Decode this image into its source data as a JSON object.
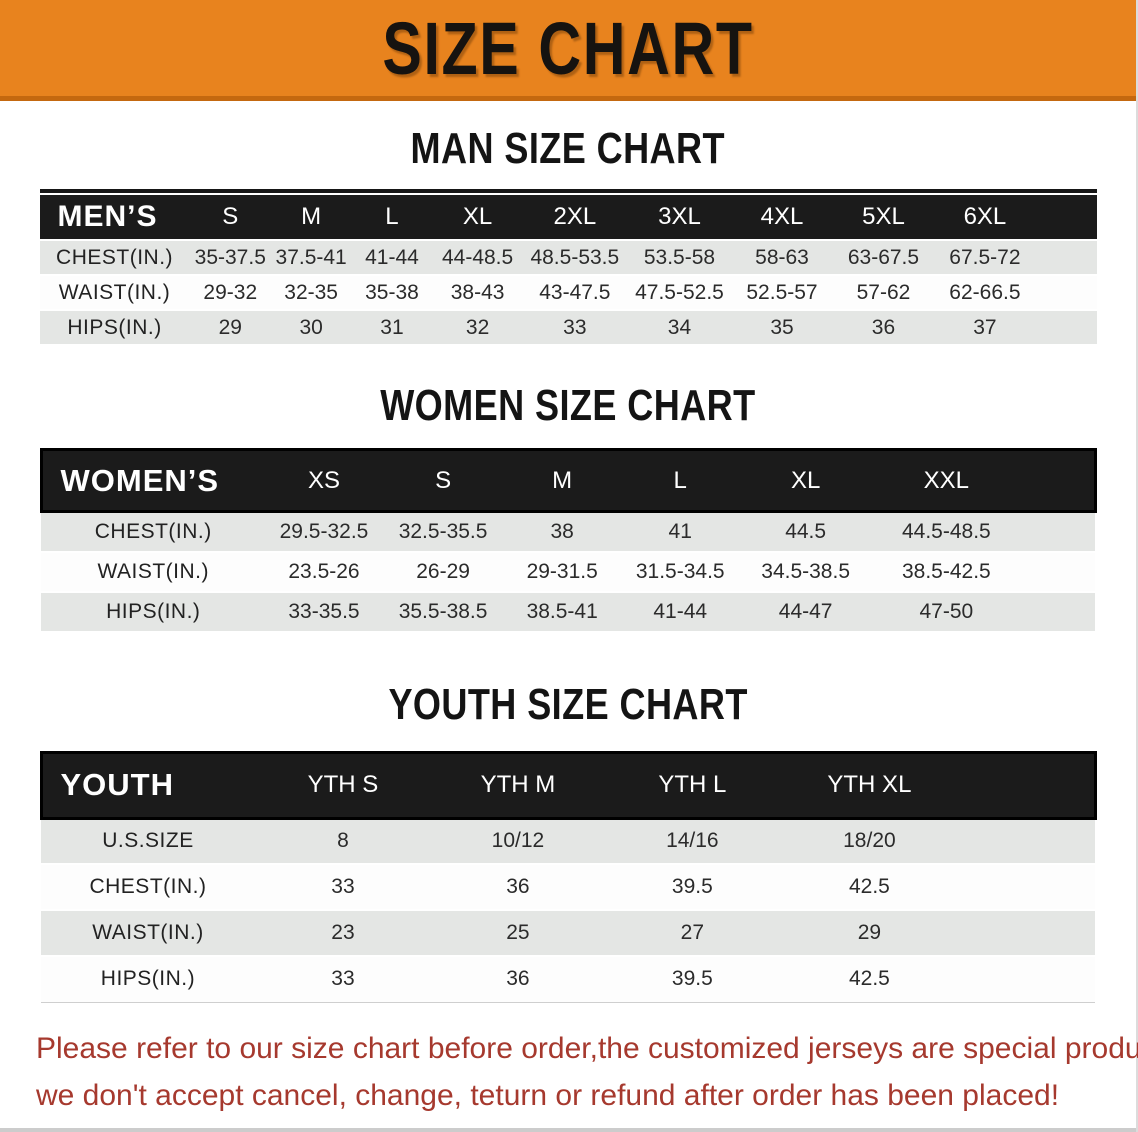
{
  "banner": {
    "title": "SIZE CHART",
    "bg_color": "#E8831E",
    "border_color": "#C4680F"
  },
  "sections": [
    {
      "heading": "MAN SIZE CHART",
      "table": {
        "corner": "MEN’S",
        "columns": [
          "S",
          "M",
          "L",
          "XL",
          "2XL",
          "3XL",
          "4XL",
          "5XL",
          "6XL"
        ],
        "rows": [
          {
            "label": "CHEST(IN.)",
            "values": [
              "35-37.5",
              "37.5-41",
              "41-44",
              "44-48.5",
              "48.5-53.5",
              "53.5-58",
              "58-63",
              "63-67.5",
              "67.5-72"
            ]
          },
          {
            "label": "WAIST(IN.)",
            "values": [
              "29-32",
              "32-35",
              "35-38",
              "38-43",
              "43-47.5",
              "47.5-52.5",
              "52.5-57",
              "57-62",
              "62-66.5"
            ]
          },
          {
            "label": "HIPS(IN.)",
            "values": [
              "29",
              "30",
              "31",
              "32",
              "33",
              "34",
              "35",
              "36",
              "37"
            ]
          }
        ]
      }
    },
    {
      "heading": "WOMEN SIZE CHART",
      "table": {
        "corner": "WOMEN’S",
        "columns": [
          "XS",
          "S",
          "M",
          "L",
          "XL",
          "XXL"
        ],
        "rows": [
          {
            "label": "CHEST(IN.)",
            "values": [
              "29.5-32.5",
              "32.5-35.5",
              "38",
              "41",
              "44.5",
              "44.5-48.5"
            ]
          },
          {
            "label": "WAIST(IN.)",
            "values": [
              "23.5-26",
              "26-29",
              "29-31.5",
              "31.5-34.5",
              "34.5-38.5",
              "38.5-42.5"
            ]
          },
          {
            "label": "HIPS(IN.)",
            "values": [
              "33-35.5",
              "35.5-38.5",
              "38.5-41",
              "41-44",
              "44-47",
              "47-50"
            ]
          }
        ]
      }
    },
    {
      "heading": "YOUTH SIZE CHART",
      "table": {
        "corner": "YOUTH",
        "columns": [
          "YTH S",
          "YTH M",
          "YTH L",
          "YTH XL"
        ],
        "rows": [
          {
            "label": "U.S.SIZE",
            "values": [
              "8",
              "10/12",
              "14/16",
              "18/20"
            ]
          },
          {
            "label": "CHEST(IN.)",
            "values": [
              "33",
              "36",
              "39.5",
              "42.5"
            ]
          },
          {
            "label": "WAIST(IN.)",
            "values": [
              "23",
              "25",
              "27",
              "29"
            ]
          },
          {
            "label": "HIPS(IN.)",
            "values": [
              "33",
              "36",
              "39.5",
              "42.5"
            ]
          }
        ]
      }
    }
  ],
  "footer": {
    "line1": "Please refer to our size chart before order,the customized jerseys are special products,",
    "line2": "we don't accept cancel, change, teturn or refund after order has been placed!",
    "text_color": "#A6392E"
  }
}
